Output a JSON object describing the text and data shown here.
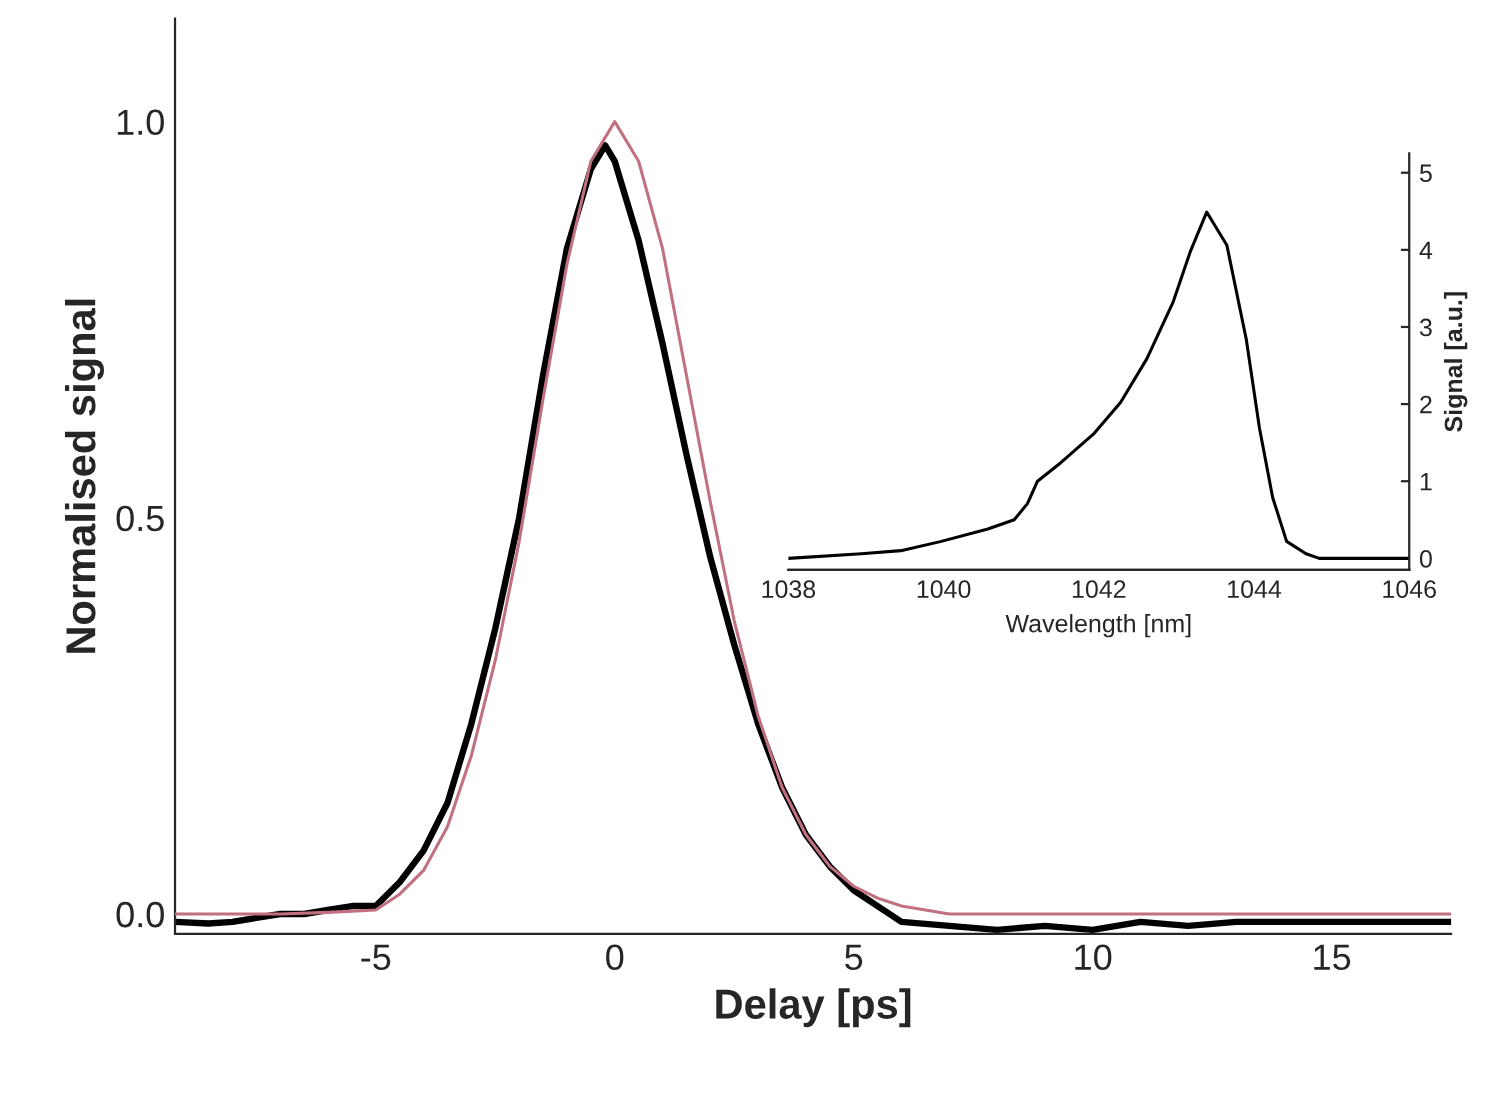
{
  "chart_data": [
    {
      "type": "line",
      "xlabel": "Delay [ps]",
      "ylabel": "Normalised signal",
      "xlim": [
        -9.2,
        17.5
      ],
      "ylim": [
        -0.025,
        1.13
      ],
      "xticks": [
        -5,
        0,
        5,
        10,
        15
      ],
      "yticks": [
        {
          "value": 0,
          "label": "0.0"
        },
        0.5,
        {
          "value": 1,
          "label": "1.0"
        }
      ],
      "grid": false,
      "legend": false,
      "series": [
        {
          "color": "#000000",
          "x": [
            -9.2,
            -8.5,
            -8,
            -7.5,
            -7,
            -6.5,
            -6,
            -5.5,
            -5,
            -4.5,
            -4,
            -3.5,
            -3,
            -2.5,
            -2,
            -1.5,
            -1,
            -0.5,
            -0.2,
            0,
            0.5,
            1,
            1.5,
            2,
            2.5,
            3,
            3.5,
            4,
            4.5,
            5,
            5.5,
            6,
            7,
            8,
            9,
            10,
            11,
            12,
            13,
            14,
            15,
            16,
            17.5
          ],
          "values": [
            -0.01,
            -0.012,
            -0.01,
            -0.005,
            0.0,
            0.0,
            0.005,
            0.01,
            0.01,
            0.04,
            0.08,
            0.14,
            0.24,
            0.36,
            0.5,
            0.68,
            0.84,
            0.94,
            0.97,
            0.95,
            0.85,
            0.72,
            0.58,
            0.45,
            0.34,
            0.24,
            0.16,
            0.1,
            0.06,
            0.03,
            0.01,
            -0.01,
            -0.015,
            -0.02,
            -0.015,
            -0.02,
            -0.01,
            -0.015,
            -0.01,
            -0.01,
            -0.01,
            -0.01,
            -0.01
          ]
        },
        {
          "color": "#c07080",
          "x": [
            -9.2,
            -7,
            -6,
            -5,
            -4.5,
            -4,
            -3.5,
            -3,
            -2.5,
            -2,
            -1.5,
            -1,
            -0.5,
            0,
            0.5,
            1,
            1.5,
            2,
            2.5,
            3,
            3.5,
            4,
            4.5,
            5,
            5.5,
            6,
            7,
            10,
            17.5
          ],
          "values": [
            0,
            0,
            0.002,
            0.005,
            0.025,
            0.055,
            0.11,
            0.2,
            0.32,
            0.47,
            0.65,
            0.82,
            0.95,
            1.0,
            0.95,
            0.84,
            0.68,
            0.52,
            0.37,
            0.25,
            0.16,
            0.1,
            0.06,
            0.035,
            0.02,
            0.01,
            0.0,
            0.0,
            0.0
          ]
        }
      ]
    },
    {
      "type": "line",
      "xlabel": "Wavelength [nm]",
      "y2label": "Signal [a.u.]",
      "xlim": [
        1038,
        1046
      ],
      "y2lim": [
        -0.15,
        5.25
      ],
      "xticks": [
        1038,
        1040,
        1042,
        1044,
        1046
      ],
      "y2ticks": [
        0,
        1,
        2,
        3,
        4,
        5
      ],
      "grid": false,
      "legend": false,
      "series": [
        {
          "color": "#000000",
          "axis": "y2",
          "x": [
            1038,
            1038.94,
            1039.45,
            1039.97,
            1040.57,
            1040.91,
            1041.08,
            1041.21,
            1041.51,
            1041.93,
            1042.28,
            1042.62,
            1042.96,
            1043.18,
            1043.39,
            1043.65,
            1043.9,
            1044.07,
            1044.24,
            1044.42,
            1044.67,
            1044.84,
            1046
          ],
          "values": [
            0.0,
            0.06,
            0.1,
            0.22,
            0.38,
            0.5,
            0.71,
            1.0,
            1.24,
            1.61,
            2.02,
            2.59,
            3.33,
            3.98,
            4.49,
            4.06,
            2.84,
            1.69,
            0.79,
            0.22,
            0.06,
            0.0,
            0.0
          ]
        }
      ]
    }
  ]
}
